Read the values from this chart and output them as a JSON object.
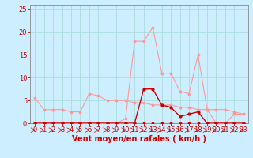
{
  "background_color": "#cceeff",
  "grid_color": "#aadddd",
  "xlabel": "Vent moyen/en rafales ( km/h )",
  "xlabel_color": "#cc0000",
  "xlabel_fontsize": 7,
  "tick_color": "#cc0000",
  "tick_fontsize": 6,
  "ylim": [
    0,
    26
  ],
  "xlim": [
    -0.5,
    23.5
  ],
  "yticks": [
    0,
    5,
    10,
    15,
    20,
    25
  ],
  "xticks": [
    0,
    1,
    2,
    3,
    4,
    5,
    6,
    7,
    8,
    9,
    10,
    11,
    12,
    13,
    14,
    15,
    16,
    17,
    18,
    19,
    20,
    21,
    22,
    23
  ],
  "line_rafales_x": [
    0,
    1,
    2,
    3,
    4,
    5,
    6,
    7,
    8,
    9,
    10,
    11,
    12,
    13,
    14,
    15,
    16,
    17,
    18,
    19,
    20,
    21,
    22,
    23
  ],
  "line_rafales_y": [
    0,
    0,
    0,
    0,
    0,
    0,
    0,
    0,
    0,
    0,
    1,
    18,
    18,
    21,
    11,
    11,
    7,
    6.5,
    15,
    3,
    0,
    0,
    2,
    2
  ],
  "line_rafales_color": "#ff9999",
  "line_moyen_x": [
    0,
    1,
    2,
    3,
    4,
    5,
    6,
    7,
    8,
    9,
    10,
    11,
    12,
    13,
    14,
    15,
    16,
    17,
    18,
    19,
    20,
    21,
    22,
    23
  ],
  "line_moyen_y": [
    5.5,
    3,
    3,
    3,
    2.5,
    2.5,
    6.5,
    6,
    5,
    5,
    5,
    4.5,
    4.5,
    4,
    4,
    4,
    3.5,
    3.5,
    3,
    3,
    3,
    3,
    2.5,
    2
  ],
  "line_moyen_color": "#ff9999",
  "line_dark1_x": [
    0,
    1,
    2,
    3,
    4,
    5,
    6,
    7,
    8,
    9,
    10,
    11,
    12,
    13,
    14,
    15,
    16,
    17,
    18,
    19,
    20,
    21,
    22,
    23
  ],
  "line_dark1_y": [
    0,
    0,
    0,
    0,
    0,
    0,
    0,
    0,
    0,
    0,
    0,
    0,
    7.5,
    7.5,
    4,
    3.5,
    1.5,
    2,
    2.5,
    0,
    0,
    0,
    0,
    0
  ],
  "line_dark1_color": "#cc0000",
  "line_dark2_x": [
    0,
    1,
    2,
    3,
    4,
    5,
    6,
    7,
    8,
    9,
    10,
    11,
    12,
    13,
    14,
    15,
    16,
    17,
    18,
    19,
    20,
    21,
    22,
    23
  ],
  "line_dark2_y": [
    0,
    0,
    0,
    0,
    0,
    0,
    0,
    0,
    0,
    0,
    0,
    0,
    0,
    0,
    0,
    0,
    0,
    0,
    0,
    0,
    0,
    0,
    0,
    0
  ],
  "line_dark2_color": "#cc0000",
  "spine_color": "#888888"
}
